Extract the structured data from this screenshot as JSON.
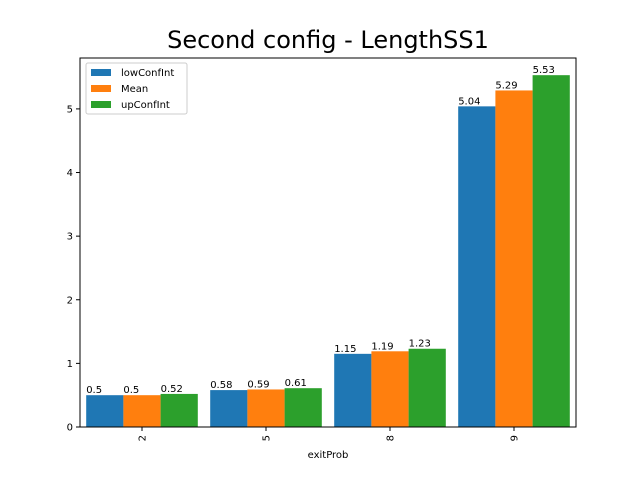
{
  "chart_data": {
    "type": "bar",
    "title": "Second config - LengthSS1",
    "xlabel": "exitProb",
    "ylabel": "",
    "categories": [
      "2",
      "5",
      "8",
      "9"
    ],
    "series": [
      {
        "name": "lowConfInt",
        "color": "#1f77b4",
        "values": [
          0.5,
          0.58,
          1.15,
          5.04
        ],
        "labels": [
          "0.5",
          "0.58",
          "1.15",
          "5.04"
        ]
      },
      {
        "name": "Mean",
        "color": "#ff7f0e",
        "values": [
          0.5,
          0.59,
          1.19,
          5.29
        ],
        "labels": [
          "0.5",
          "0.59",
          "1.19",
          "5.29"
        ]
      },
      {
        "name": "upConfInt",
        "color": "#2ca02c",
        "values": [
          0.52,
          0.61,
          1.23,
          5.53
        ],
        "labels": [
          "0.52",
          "0.61",
          "1.23",
          "5.53"
        ]
      }
    ],
    "ylim": [
      0,
      5.8
    ],
    "yticks": [
      "0",
      "1",
      "2",
      "3",
      "4",
      "5"
    ],
    "legend_position": "top-left",
    "grid": false
  }
}
